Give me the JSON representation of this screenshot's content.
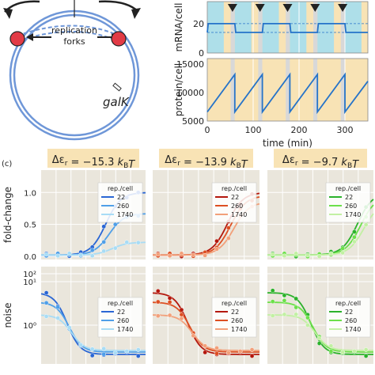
{
  "diagram": {
    "forks_label_1": "replication",
    "forks_label_2": "forks",
    "gene_label": "galK"
  },
  "panel_label": "(c)",
  "chart_data": [
    {
      "type": "line",
      "panel": "mRNA",
      "ylabel": "mRNA/cell",
      "xlim": [
        0,
        350
      ],
      "ylim": [
        0,
        35
      ],
      "yticks": [
        0,
        20
      ],
      "xticks": [
        0,
        100,
        200,
        300
      ],
      "shading": {
        "cycle_start": [
          0,
          60,
          120,
          180,
          240,
          300
        ],
        "replicated_fraction": 0.6,
        "replicated_color": "#aedfe9",
        "unreplicated_color": "#f8e3b5",
        "gap_color": "#d8d8d8"
      },
      "series": [
        {
          "x": [
            0,
            2,
            60,
            62,
            120,
            122,
            180,
            182,
            240,
            242,
            300,
            302,
            350
          ],
          "y": [
            14,
            20,
            20,
            14,
            14,
            20,
            20,
            14,
            14,
            20,
            20,
            14,
            14
          ]
        }
      ],
      "markers": {
        "x": [
          55,
          115,
          175,
          235,
          295
        ]
      },
      "mean_levels": [
        14,
        20
      ]
    },
    {
      "type": "line",
      "panel": "protein",
      "ylabel": "protein/cell",
      "xlabel": "time (min)",
      "xlim": [
        0,
        350
      ],
      "ylim": [
        5000,
        16000
      ],
      "yticks": [
        5000,
        10000,
        15000
      ],
      "xticks": [
        0,
        100,
        200,
        300
      ],
      "series": [
        {
          "x": [
            0,
            60,
            60,
            120,
            120,
            180,
            180,
            240,
            240,
            300,
            300,
            350
          ],
          "y": [
            6600,
            13200,
            6600,
            13200,
            6600,
            13200,
            6600,
            13200,
            6600,
            13200,
            6600,
            12000
          ]
        }
      ]
    },
    {
      "type": "scatter",
      "title_prefix": "Δε",
      "title_sub": "r",
      "title_value": " = −15.3 ",
      "title_unit": "k",
      "title_unit_sub": "B",
      "title_T": "T",
      "ylabel": "fold-change",
      "yticks": [
        0.0,
        0.5,
        1.0
      ],
      "ylim": [
        -0.05,
        1.35
      ],
      "legend_title": "rep./cell",
      "legend_entries": [
        "22",
        "260",
        "1740"
      ],
      "colors": [
        "#2a66d4",
        "#4f9fe8",
        "#a8dcf5"
      ],
      "fold_change_top": [
        1.0,
        0.67,
        0.22
      ]
    },
    {
      "type": "scatter",
      "title_value": " = −13.9 ",
      "legend_title": "rep./cell",
      "legend_entries": [
        "22",
        "260",
        "1740"
      ],
      "colors": [
        "#b4180d",
        "#dd4f22",
        "#f2a07a"
      ],
      "fold_change_top": [
        1.0,
        0.95,
        0.85
      ]
    },
    {
      "type": "scatter",
      "title_value": " = −9.7 ",
      "legend_title": "rep./cell",
      "legend_entries": [
        "22",
        "260",
        "1740"
      ],
      "colors": [
        "#2bb22b",
        "#6ce04a",
        "#c2f0a3"
      ],
      "fold_change_top": [
        1.0,
        0.95,
        0.85
      ]
    },
    {
      "type": "scatter",
      "panel": "noise",
      "ylabel": "noise",
      "yticks": [
        "10²",
        "10¹",
        "10⁰"
      ]
    }
  ]
}
